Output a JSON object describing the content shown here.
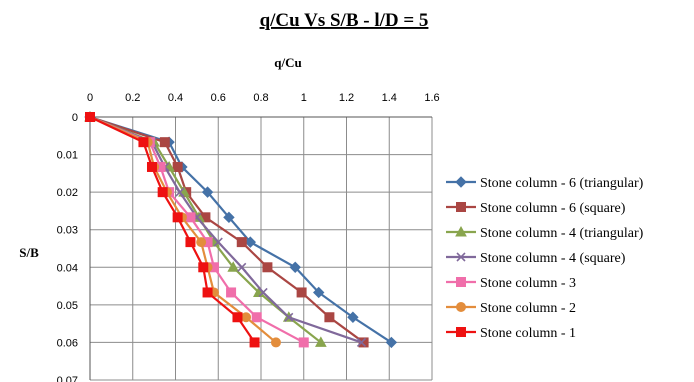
{
  "chart_data": {
    "type": "line",
    "title": "q/Cu Vs S/B - l/D = 5",
    "xlabel": "q/Cu",
    "ylabel": "S/B",
    "xlim": [
      0,
      1.6
    ],
    "ylim": [
      0,
      0.07
    ],
    "x_axis_position": "top",
    "y_axis_inverted": true,
    "grid": true,
    "legend_position": "right",
    "xticks": [
      "0",
      "0.2",
      "0.4",
      "0.6",
      "0.8",
      "1",
      "1.2",
      "1.4",
      "1.6"
    ],
    "yticks": [
      "0",
      "0.01",
      "0.02",
      "0.03",
      "0.04",
      "0.05",
      "0.06",
      "0.07"
    ],
    "series": [
      {
        "name": "Stone column - 6 (triangular)",
        "color": "#4572A7",
        "marker": "diamond",
        "x": [
          0,
          0.37,
          0.43,
          0.55,
          0.65,
          0.75,
          0.96,
          1.07,
          1.23,
          1.41
        ],
        "y": [
          0,
          0.0067,
          0.0133,
          0.02,
          0.0267,
          0.0333,
          0.04,
          0.0467,
          0.0533,
          0.06
        ]
      },
      {
        "name": "Stone column - 6 (square)",
        "color": "#AA4643",
        "marker": "square",
        "x": [
          0,
          0.35,
          0.41,
          0.45,
          0.54,
          0.71,
          0.83,
          0.99,
          1.12,
          1.28
        ],
        "y": [
          0,
          0.0067,
          0.0133,
          0.02,
          0.0267,
          0.0333,
          0.04,
          0.0467,
          0.0533,
          0.06
        ]
      },
      {
        "name": "Stone column - 4 (triangular)",
        "color": "#89A54E",
        "marker": "triangle",
        "x": [
          0,
          0.3,
          0.37,
          0.44,
          0.51,
          0.58,
          0.67,
          0.79,
          0.93,
          1.08
        ],
        "y": [
          0,
          0.0067,
          0.0133,
          0.02,
          0.0267,
          0.0333,
          0.04,
          0.0467,
          0.0533,
          0.06
        ]
      },
      {
        "name": "Stone column - 4 (square)",
        "color": "#80699B",
        "marker": "x",
        "x": [
          0,
          0.29,
          0.35,
          0.42,
          0.5,
          0.6,
          0.71,
          0.81,
          0.93,
          1.27
        ],
        "y": [
          0,
          0.0067,
          0.0133,
          0.02,
          0.0267,
          0.0333,
          0.04,
          0.0467,
          0.0533,
          0.06
        ]
      },
      {
        "name": "Stone column - 3",
        "color": "#F06EAA",
        "marker": "square",
        "x": [
          0,
          0.28,
          0.33,
          0.37,
          0.47,
          0.55,
          0.58,
          0.66,
          0.78,
          1.0
        ],
        "y": [
          0,
          0.0067,
          0.0133,
          0.02,
          0.0267,
          0.0333,
          0.04,
          0.0467,
          0.0533,
          0.06
        ]
      },
      {
        "name": "Stone column - 2",
        "color": "#E38D3C",
        "marker": "circle",
        "x": [
          0,
          0.27,
          0.3,
          0.36,
          0.43,
          0.52,
          0.55,
          0.58,
          0.73,
          0.87
        ],
        "y": [
          0,
          0.0067,
          0.0133,
          0.02,
          0.0267,
          0.0333,
          0.04,
          0.0467,
          0.0533,
          0.06
        ]
      },
      {
        "name": "Stone column - 1",
        "color": "#EE1111",
        "marker": "square",
        "x": [
          0,
          0.25,
          0.29,
          0.34,
          0.41,
          0.47,
          0.53,
          0.55,
          0.69,
          0.77
        ],
        "y": [
          0,
          0.0067,
          0.0133,
          0.02,
          0.0267,
          0.0333,
          0.04,
          0.0467,
          0.0533,
          0.06
        ]
      }
    ]
  }
}
